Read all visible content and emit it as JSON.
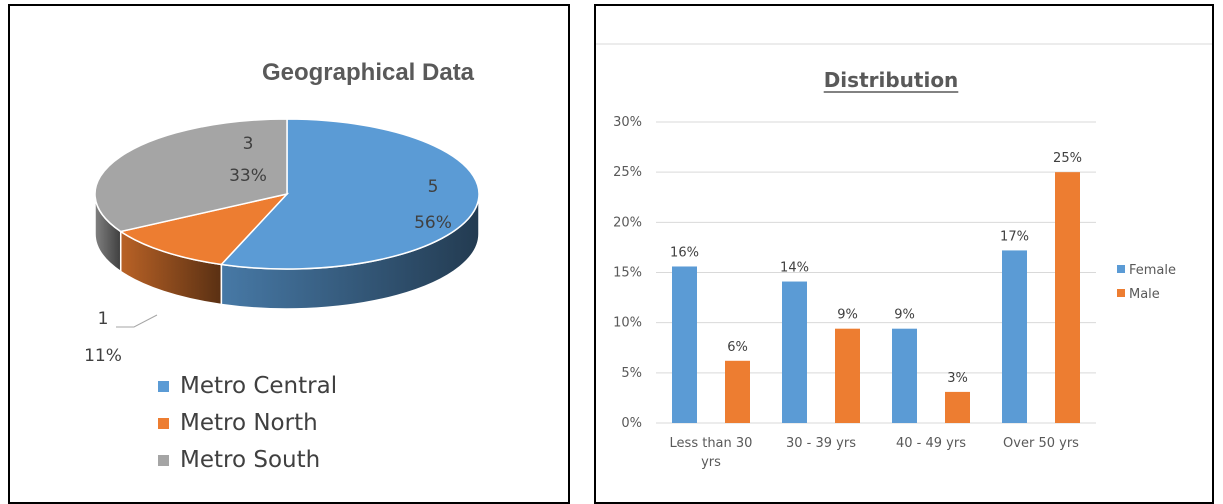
{
  "chart_data": [
    {
      "type": "pie",
      "title": "Geographical Data",
      "categories": [
        "Metro Central",
        "Metro North",
        "Metro South"
      ],
      "values": [
        5,
        1,
        3
      ],
      "percent_labels": [
        "56%",
        "11%",
        "33%"
      ],
      "colors": [
        "#5b9bd5",
        "#ed7d31",
        "#a5a5a5"
      ],
      "legend_position": "bottom",
      "style": "3d"
    },
    {
      "type": "bar",
      "title": "Distribution",
      "categories": [
        "Less than 30 yrs",
        "30 - 39 yrs",
        "40 - 49 yrs",
        "Over 50 yrs"
      ],
      "category_lines": [
        [
          "Less than 30",
          "yrs"
        ],
        [
          "30 - 39 yrs"
        ],
        [
          "40 - 49 yrs"
        ],
        [
          "Over 50 yrs"
        ]
      ],
      "series": [
        {
          "name": "Female",
          "values": [
            15.6,
            14.1,
            9.4,
            17.2
          ],
          "labels": [
            "16%",
            "14%",
            "9%",
            "17%"
          ],
          "color": "#5b9bd5"
        },
        {
          "name": "Male",
          "values": [
            6.2,
            9.4,
            3.1,
            25.0
          ],
          "labels": [
            "6%",
            "9%",
            "3%",
            "25%"
          ],
          "color": "#ed7d31"
        }
      ],
      "yticks": [
        "0%",
        "5%",
        "10%",
        "15%",
        "20%",
        "25%",
        "30%"
      ],
      "ylim": [
        0,
        30
      ],
      "grid": true,
      "legend_position": "right"
    }
  ]
}
